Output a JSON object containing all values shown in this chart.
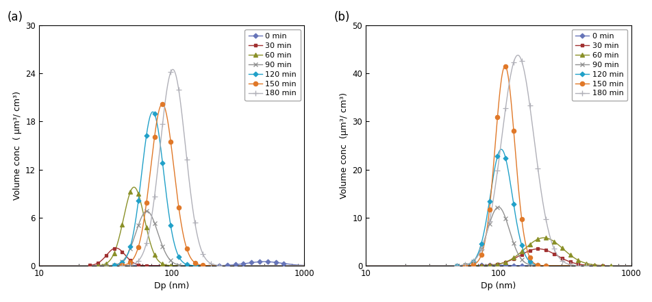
{
  "panel_a": {
    "label": "(a)",
    "ylabel": "Volume conc  ( μm³/ cm³)",
    "xlabel": "Dp (nm)",
    "ylim": [
      0,
      30
    ],
    "yticks": [
      0,
      6,
      12,
      18,
      24,
      30
    ],
    "xlim": [
      10,
      1000
    ],
    "series": [
      {
        "label": "0 min",
        "color": "#6674b8",
        "marker": "D",
        "markersize": 3.5,
        "peak_dp": 500,
        "peak_val": 0.5,
        "sigma": 0.3
      },
      {
        "label": "30 min",
        "color": "#a03030",
        "marker": "s",
        "markersize": 3.5,
        "peak_dp": 38,
        "peak_val": 2.2,
        "sigma": 0.16
      },
      {
        "label": "60 min",
        "color": "#8a9028",
        "marker": "^",
        "markersize": 4,
        "peak_dp": 52,
        "peak_val": 9.8,
        "sigma": 0.18
      },
      {
        "label": "90 min",
        "color": "#909090",
        "marker": "x",
        "markersize": 5,
        "peak_dp": 65,
        "peak_val": 6.8,
        "sigma": 0.19
      },
      {
        "label": "120 min",
        "color": "#20a0c8",
        "marker": "D",
        "markersize": 3.5,
        "peak_dp": 72,
        "peak_val": 19.2,
        "sigma": 0.19
      },
      {
        "label": "150 min",
        "color": "#e07828",
        "marker": "o",
        "markersize": 4.5,
        "peak_dp": 85,
        "peak_val": 20.2,
        "sigma": 0.2
      },
      {
        "label": "180 min",
        "color": "#b0b0b8",
        "marker": "+",
        "markersize": 6,
        "peak_dp": 102,
        "peak_val": 24.5,
        "sigma": 0.22
      }
    ]
  },
  "panel_b": {
    "label": "(b)",
    "ylabel": "Volume conc  (μm³/ cm³)",
    "xlabel": "Dp (nm)",
    "ylim": [
      0,
      50
    ],
    "yticks": [
      0,
      10,
      20,
      30,
      40,
      50
    ],
    "xlim": [
      10,
      1000
    ],
    "series": [
      {
        "label": "0 min",
        "color": "#6674b8",
        "marker": "D",
        "markersize": 3.5,
        "peak_dp": 90,
        "peak_val": 0.15,
        "sigma": 0.2
      },
      {
        "label": "30 min",
        "color": "#a03030",
        "marker": "s",
        "markersize": 3.5,
        "peak_dp": 200,
        "peak_val": 3.5,
        "sigma": 0.32
      },
      {
        "label": "60 min",
        "color": "#8a9028",
        "marker": "^",
        "markersize": 4,
        "peak_dp": 220,
        "peak_val": 5.8,
        "sigma": 0.33
      },
      {
        "label": "90 min",
        "color": "#909090",
        "marker": "x",
        "markersize": 5,
        "peak_dp": 100,
        "peak_val": 12.2,
        "sigma": 0.19
      },
      {
        "label": "120 min",
        "color": "#20a0c8",
        "marker": "D",
        "markersize": 3.5,
        "peak_dp": 105,
        "peak_val": 24.2,
        "sigma": 0.19
      },
      {
        "label": "150 min",
        "color": "#e07828",
        "marker": "o",
        "markersize": 4.5,
        "peak_dp": 112,
        "peak_val": 41.5,
        "sigma": 0.17
      },
      {
        "label": "180 min",
        "color": "#b0b0b8",
        "marker": "+",
        "markersize": 6,
        "peak_dp": 140,
        "peak_val": 43.8,
        "sigma": 0.28
      }
    ]
  },
  "background_color": "#ffffff",
  "legend_fontsize": 8,
  "axis_fontsize": 9,
  "tick_fontsize": 8.5
}
